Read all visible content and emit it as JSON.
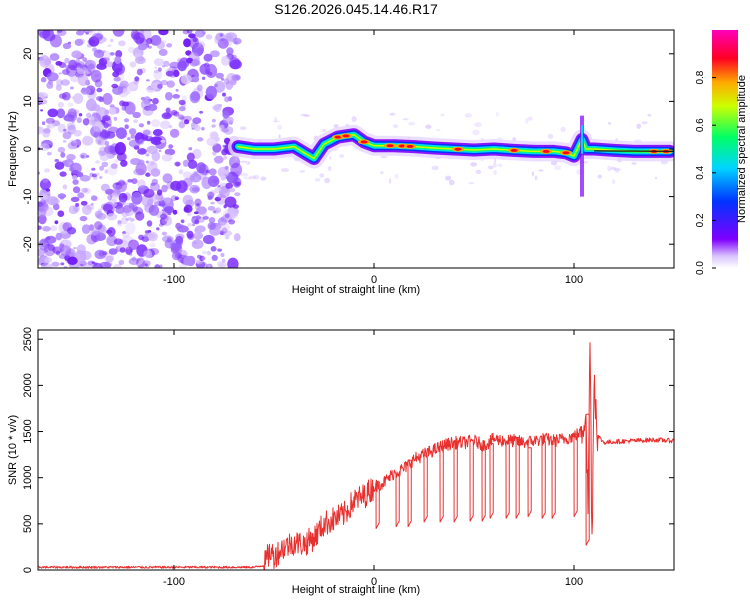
{
  "figure_title": "S126.2026.045.14.46.R17",
  "chart_data": [
    {
      "type": "heatmap",
      "title": "S126.2026.045.14.46.R17",
      "xlabel": "Height of straight line (km)",
      "ylabel": "Frequency (Hz)",
      "xlim": [
        -168,
        150
      ],
      "ylim": [
        -25,
        25
      ],
      "xticks": [
        -100,
        0,
        100
      ],
      "yticks": [
        -20,
        -10,
        0,
        10,
        20
      ],
      "noise_region_x": [
        -168,
        -68
      ],
      "signal_track": {
        "x": [
          -68,
          -60,
          -50,
          -40,
          -34,
          -30,
          -25,
          -18,
          -10,
          -5,
          0,
          10,
          20,
          30,
          40,
          50,
          60,
          70,
          80,
          90,
          96,
          100,
          104,
          106,
          110,
          120,
          130,
          140,
          148
        ],
        "freq": [
          0.5,
          0,
          0,
          0.5,
          -1,
          -2,
          1,
          2.5,
          3,
          1.5,
          0.7,
          0.7,
          0.5,
          0.2,
          0,
          -0.2,
          0,
          -0.3,
          -0.5,
          -0.5,
          -0.8,
          -1.5,
          2,
          0,
          0,
          -0.3,
          -0.5,
          -0.5,
          -0.5
        ]
      },
      "colorbar": {
        "label": "Normalized spectral amplitude",
        "range": [
          0,
          1
        ],
        "ticks": [
          "0.0",
          "0.2",
          "0.4",
          "0.6",
          "0.8"
        ]
      }
    },
    {
      "type": "line",
      "xlabel": "Height of straight line (km)",
      "ylabel": "SNR (10 * v/v)",
      "xlim": [
        -168,
        150
      ],
      "ylim": [
        0,
        2600
      ],
      "xticks": [
        -100,
        0,
        100
      ],
      "yticks": [
        0,
        500,
        1000,
        1500,
        2000,
        2500
      ],
      "color": "#e8302f",
      "series": [
        {
          "name": "SNR",
          "x": [
            -168,
            -150,
            -120,
            -100,
            -80,
            -60,
            -55,
            -52,
            -50,
            -45,
            -40,
            -35,
            -30,
            -25,
            -20,
            -15,
            -10,
            -5,
            0,
            5,
            10,
            15,
            20,
            25,
            30,
            35,
            40,
            45,
            50,
            55,
            60,
            65,
            70,
            75,
            80,
            85,
            90,
            95,
            100,
            104,
            106,
            107,
            108,
            109,
            110,
            112,
            115,
            120,
            130,
            140,
            150
          ],
          "y": [
            30,
            30,
            30,
            30,
            30,
            30,
            50,
            200,
            150,
            250,
            300,
            280,
            350,
            500,
            550,
            600,
            750,
            800,
            900,
            950,
            1050,
            1100,
            1200,
            1250,
            1300,
            1350,
            1380,
            1380,
            1400,
            1350,
            1420,
            1400,
            1400,
            1380,
            1400,
            1420,
            1400,
            1420,
            1450,
            1500,
            1800,
            600,
            2550,
            300,
            2100,
            1450,
            1380,
            1390,
            1400,
            1410,
            1400
          ]
        }
      ],
      "drops": [
        {
          "x": 1,
          "to": 450
        },
        {
          "x": 11,
          "to": 470
        },
        {
          "x": 17,
          "to": 470
        },
        {
          "x": 25,
          "to": 520
        },
        {
          "x": 33,
          "to": 520
        },
        {
          "x": 40,
          "to": 520
        },
        {
          "x": 48,
          "to": 530
        },
        {
          "x": 54,
          "to": 530
        },
        {
          "x": 58,
          "to": 560
        },
        {
          "x": 66,
          "to": 560
        },
        {
          "x": 71,
          "to": 560
        },
        {
          "x": 77,
          "to": 580
        },
        {
          "x": 84,
          "to": 560
        },
        {
          "x": 89,
          "to": 560
        },
        {
          "x": 100,
          "to": 580
        },
        {
          "x": 106,
          "to": 270
        }
      ]
    }
  ]
}
